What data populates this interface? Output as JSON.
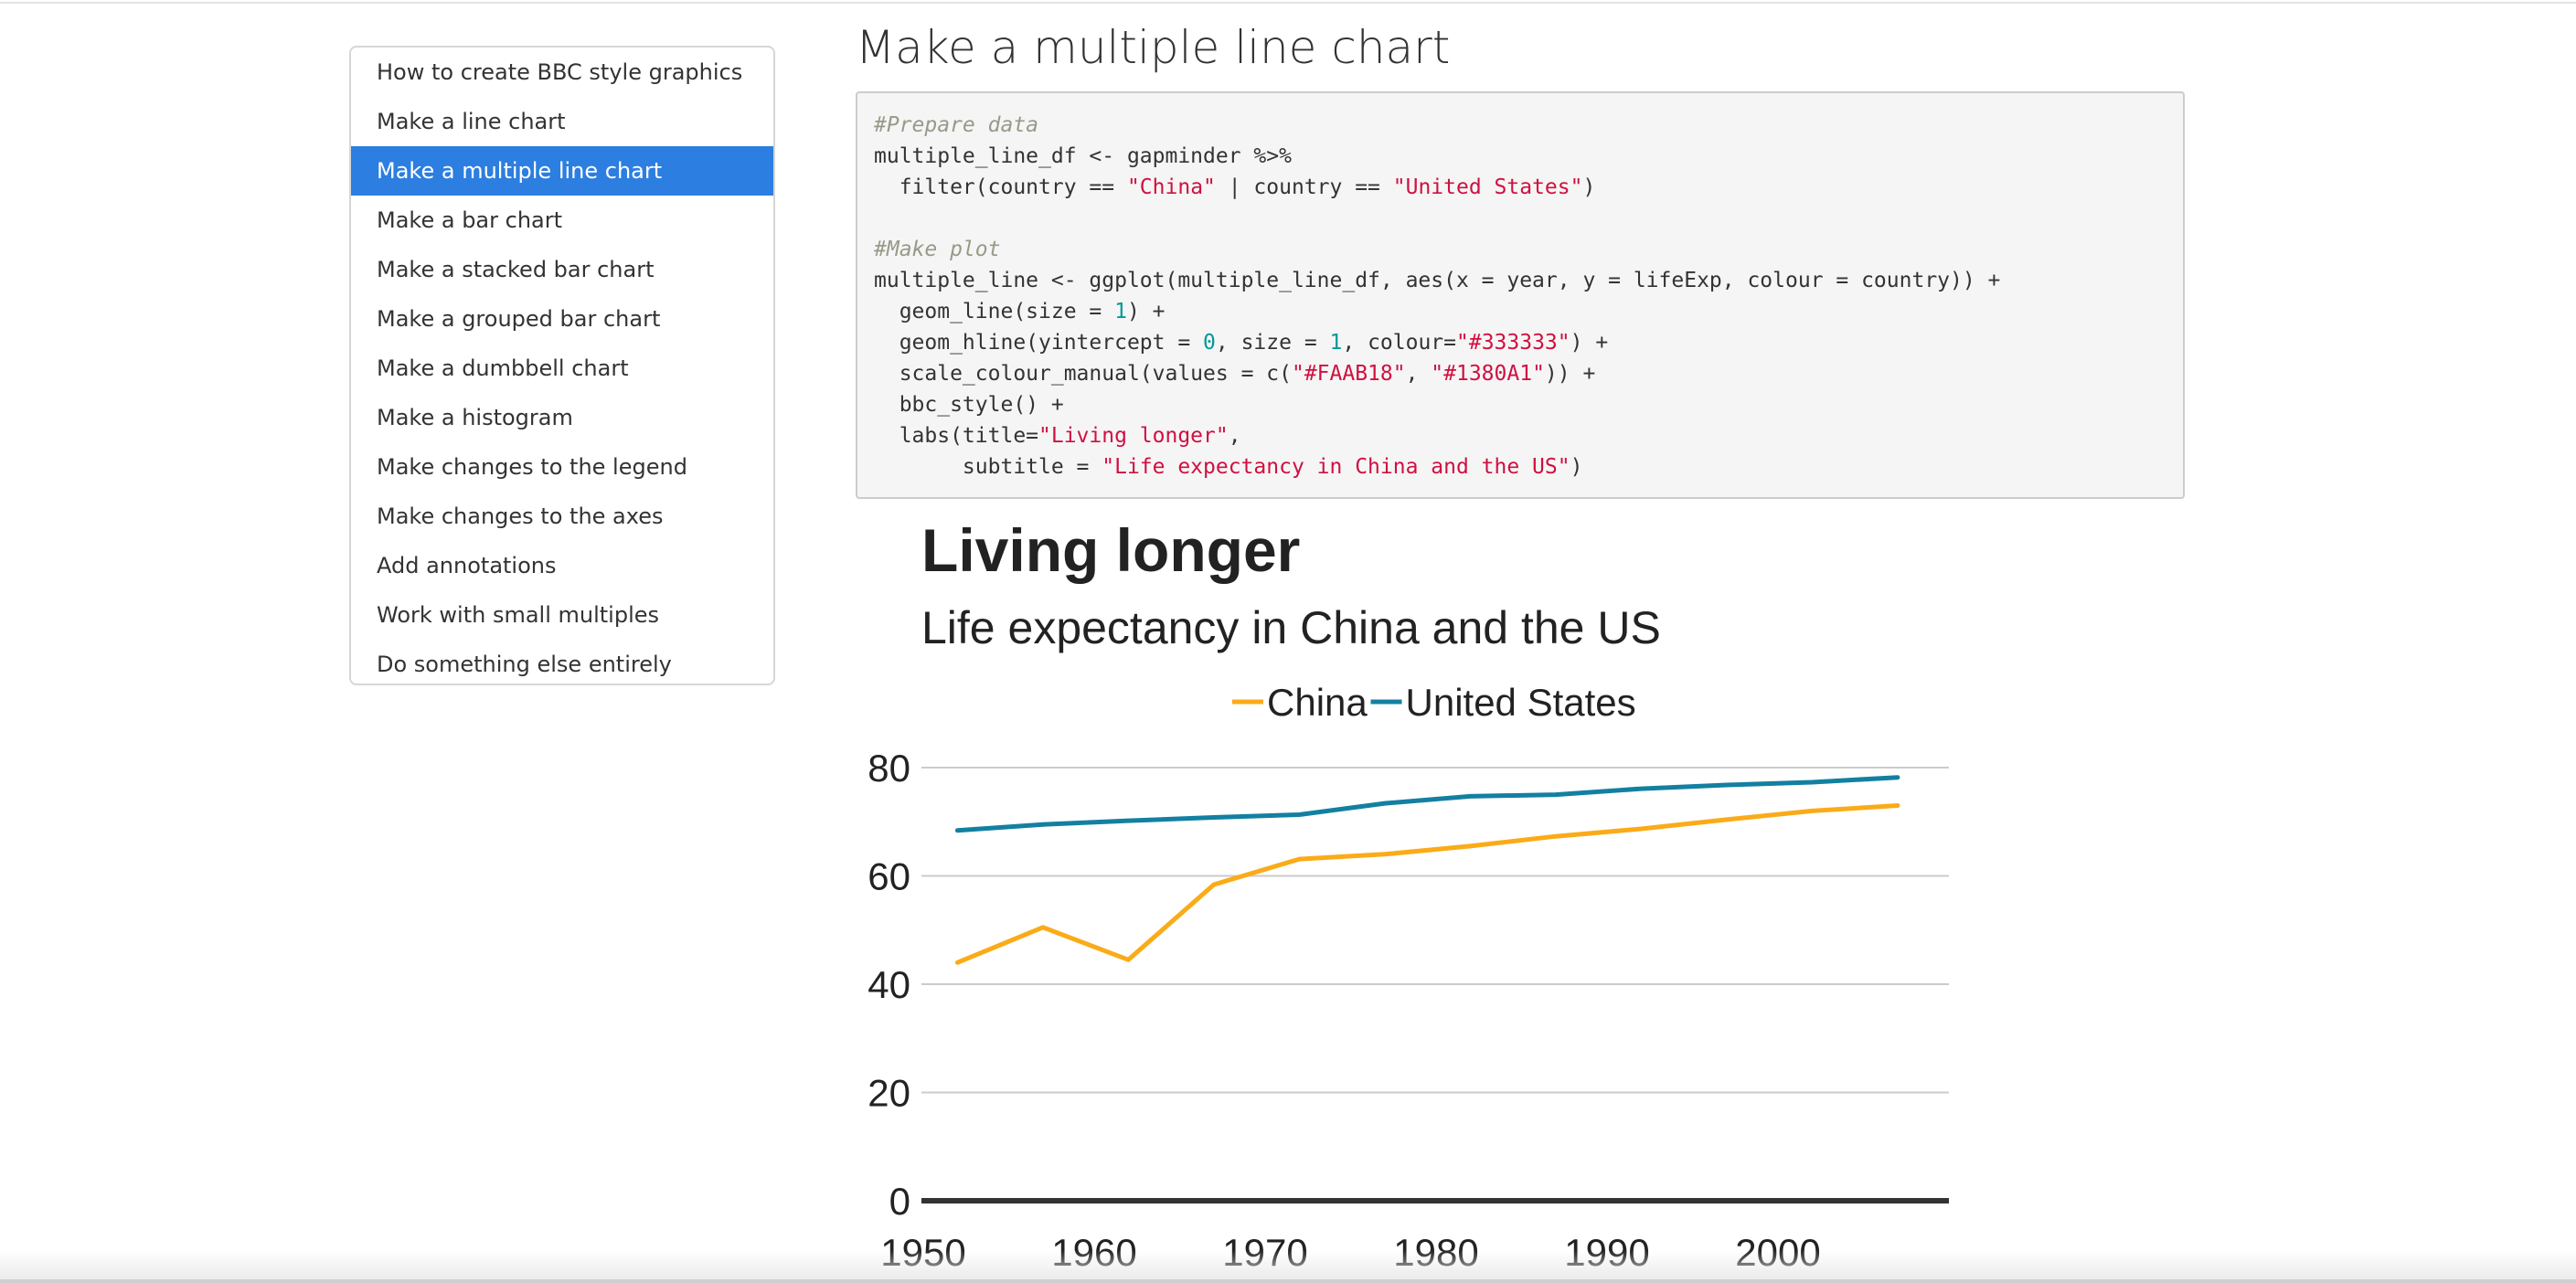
{
  "toc": {
    "items": [
      {
        "label": "How to create BBC style graphics",
        "active": false
      },
      {
        "label": "Make a line chart",
        "active": false
      },
      {
        "label": "Make a multiple line chart",
        "active": true
      },
      {
        "label": "Make a bar chart",
        "active": false
      },
      {
        "label": "Make a stacked bar chart",
        "active": false
      },
      {
        "label": "Make a grouped bar chart",
        "active": false
      },
      {
        "label": "Make a dumbbell chart",
        "active": false
      },
      {
        "label": "Make a histogram",
        "active": false
      },
      {
        "label": "Make changes to the legend",
        "active": false
      },
      {
        "label": "Make changes to the axes",
        "active": false
      },
      {
        "label": "Add annotations",
        "active": false
      },
      {
        "label": "Work with small multiples",
        "active": false
      },
      {
        "label": "Do something else entirely",
        "active": false
      }
    ],
    "active_color": "#2c7ee0"
  },
  "main": {
    "title": "Make a multiple line chart"
  },
  "code": {
    "lines": [
      [
        {
          "t": "#Prepare data",
          "k": "comment"
        }
      ],
      [
        {
          "t": "multiple_line_df <- gapminder %>%"
        }
      ],
      [
        {
          "t": "  filter(country == "
        },
        {
          "t": "\"China\"",
          "k": "str"
        },
        {
          "t": " | country == "
        },
        {
          "t": "\"United States\"",
          "k": "str"
        },
        {
          "t": ")"
        }
      ],
      [],
      [
        {
          "t": "#Make plot",
          "k": "comment"
        }
      ],
      [
        {
          "t": "multiple_line <- ggplot(multiple_line_df, aes(x = year, y = lifeExp, colour = country)) +"
        }
      ],
      [
        {
          "t": "  geom_line(size = "
        },
        {
          "t": "1",
          "k": "num"
        },
        {
          "t": ") +"
        }
      ],
      [
        {
          "t": "  geom_hline(yintercept = "
        },
        {
          "t": "0",
          "k": "num"
        },
        {
          "t": ", size = "
        },
        {
          "t": "1",
          "k": "num"
        },
        {
          "t": ", colour="
        },
        {
          "t": "\"#333333\"",
          "k": "str"
        },
        {
          "t": ") +"
        }
      ],
      [
        {
          "t": "  scale_colour_manual(values = c("
        },
        {
          "t": "\"#FAAB18\"",
          "k": "str"
        },
        {
          "t": ", "
        },
        {
          "t": "\"#1380A1\"",
          "k": "str"
        },
        {
          "t": ")) +"
        }
      ],
      [
        {
          "t": "  bbc_style() +"
        }
      ],
      [
        {
          "t": "  labs(title="
        },
        {
          "t": "\"Living longer\"",
          "k": "str"
        },
        {
          "t": ","
        }
      ],
      [
        {
          "t": "       subtitle = "
        },
        {
          "t": "\"Life expectancy in China and the US\"",
          "k": "str"
        },
        {
          "t": ")"
        }
      ]
    ]
  },
  "chart_data": {
    "type": "line",
    "title": "Living longer",
    "subtitle": "Life expectancy in China and the US",
    "xlabel": "",
    "ylabel": "",
    "xlim": [
      1950,
      2010
    ],
    "ylim": [
      0,
      85
    ],
    "x_ticks": [
      "1950",
      "1960",
      "1970",
      "1980",
      "1990",
      "2000"
    ],
    "y_ticks": [
      "0",
      "20",
      "40",
      "60",
      "80"
    ],
    "grid": "horizontal",
    "legend_position": "top",
    "baseline_color": "#333333",
    "grid_color": "#cbcbcb",
    "x": [
      1952,
      1957,
      1962,
      1967,
      1972,
      1977,
      1982,
      1987,
      1992,
      1997,
      2002,
      2007
    ],
    "series": [
      {
        "name": "China",
        "color": "#FAAB18",
        "values": [
          44.0,
          50.5,
          44.5,
          58.4,
          63.1,
          64.0,
          65.5,
          67.3,
          68.7,
          70.4,
          72.0,
          73.0
        ]
      },
      {
        "name": "United States",
        "color": "#1380A1",
        "values": [
          68.4,
          69.5,
          70.2,
          70.8,
          71.3,
          73.4,
          74.7,
          75.0,
          76.1,
          76.8,
          77.3,
          78.2
        ]
      }
    ]
  }
}
